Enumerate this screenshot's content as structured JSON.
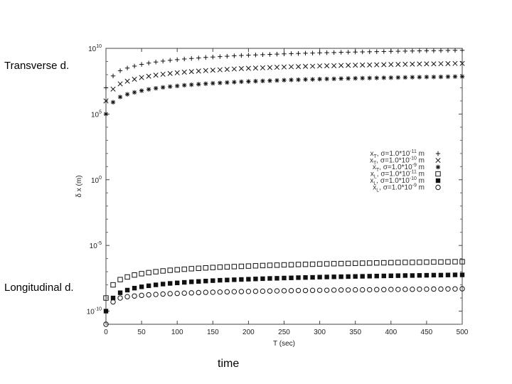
{
  "annotations": {
    "transverse": "Transverse d.",
    "longitudinal": "Longitudinal d.",
    "time": "time"
  },
  "chart_data": {
    "type": "scatter",
    "xlabel": "T (sec)",
    "ylabel": "δ x (m)",
    "xlim": [
      0,
      500
    ],
    "ylim_exp": [
      -11,
      10
    ],
    "y_scale": "log",
    "x_ticks": [
      0,
      50,
      100,
      150,
      200,
      250,
      300,
      350,
      400,
      450,
      500
    ],
    "x_tick_labels": [
      "0",
      "50",
      "100",
      "150",
      "200",
      "250",
      "300",
      "350",
      "400",
      "450",
      "500"
    ],
    "y_ticks_exp": [
      -10,
      -5,
      0,
      5,
      10
    ],
    "y_tick_labels": [
      {
        "base": "10",
        "exp": "-10"
      },
      {
        "base": "10",
        "exp": "-5"
      },
      {
        "base": "10",
        "exp": "0"
      },
      {
        "base": "10",
        "exp": "5"
      },
      {
        "base": "10",
        "exp": "10"
      }
    ],
    "grid": false,
    "legend_position": "right",
    "x": [
      0,
      10,
      20,
      30,
      40,
      50,
      60,
      70,
      80,
      90,
      100,
      110,
      120,
      130,
      140,
      150,
      160,
      170,
      180,
      190,
      200,
      210,
      220,
      230,
      240,
      250,
      260,
      270,
      280,
      290,
      300,
      310,
      320,
      330,
      340,
      350,
      360,
      370,
      380,
      390,
      400,
      410,
      420,
      430,
      440,
      450,
      460,
      470,
      480,
      490,
      500
    ],
    "series": [
      {
        "name": "x_T, σ=1.0*10^-11 m",
        "legend": {
          "pre": "x",
          "sub": "T",
          "mid": ", σ=1.0*10",
          "sup": "-11",
          "post": " m"
        },
        "marker": "plus",
        "y_exp": [
          7.0,
          7.9,
          8.3,
          8.5,
          8.65,
          8.78,
          8.88,
          8.96,
          9.03,
          9.09,
          9.14,
          9.19,
          9.23,
          9.27,
          9.31,
          9.34,
          9.37,
          9.4,
          9.43,
          9.46,
          9.48,
          9.5,
          9.52,
          9.54,
          9.56,
          9.58,
          9.6,
          9.61,
          9.63,
          9.64,
          9.66,
          9.67,
          9.68,
          9.7,
          9.71,
          9.72,
          9.73,
          9.74,
          9.75,
          9.76,
          9.77,
          9.78,
          9.79,
          9.8,
          9.81,
          9.82,
          9.82,
          9.83,
          9.84,
          9.85,
          9.85
        ]
      },
      {
        "name": "x_T, σ=1.0*10^-10 m",
        "legend": {
          "pre": "x",
          "sub": "T",
          "mid": ", σ=1.0*10",
          "sup": "-10",
          "post": " m"
        },
        "marker": "cross",
        "y_exp": [
          6.0,
          6.9,
          7.3,
          7.5,
          7.65,
          7.78,
          7.88,
          7.96,
          8.03,
          8.09,
          8.14,
          8.19,
          8.23,
          8.27,
          8.31,
          8.34,
          8.37,
          8.4,
          8.43,
          8.46,
          8.48,
          8.5,
          8.52,
          8.54,
          8.56,
          8.58,
          8.6,
          8.61,
          8.63,
          8.64,
          8.66,
          8.67,
          8.68,
          8.7,
          8.71,
          8.72,
          8.73,
          8.74,
          8.75,
          8.76,
          8.77,
          8.78,
          8.79,
          8.8,
          8.81,
          8.82,
          8.82,
          8.83,
          8.84,
          8.85,
          8.85
        ]
      },
      {
        "name": "x_T, σ=1.0*10^-9 m",
        "legend": {
          "pre": "x",
          "sub": "T",
          "mid": ", σ=1.0*10",
          "sup": "-9",
          "post": " m"
        },
        "marker": "star",
        "y_exp": [
          5.0,
          5.9,
          6.3,
          6.5,
          6.65,
          6.78,
          6.88,
          6.96,
          7.03,
          7.09,
          7.14,
          7.19,
          7.23,
          7.27,
          7.31,
          7.34,
          7.37,
          7.4,
          7.43,
          7.46,
          7.48,
          7.5,
          7.52,
          7.54,
          7.56,
          7.58,
          7.6,
          7.61,
          7.63,
          7.64,
          7.66,
          7.67,
          7.68,
          7.7,
          7.71,
          7.72,
          7.73,
          7.74,
          7.75,
          7.76,
          7.77,
          7.78,
          7.79,
          7.8,
          7.81,
          7.82,
          7.82,
          7.83,
          7.84,
          7.85,
          7.85
        ]
      },
      {
        "name": "x_L, σ=1.0*10^-11 m",
        "legend": {
          "pre": "x",
          "sub": "L",
          "mid": ", σ=1.0*10",
          "sup": "-11",
          "post": " m"
        },
        "marker": "square-open",
        "y_exp": [
          -9.0,
          -8.0,
          -7.6,
          -7.4,
          -7.25,
          -7.15,
          -7.07,
          -7.0,
          -6.94,
          -6.89,
          -6.85,
          -6.81,
          -6.77,
          -6.74,
          -6.71,
          -6.68,
          -6.65,
          -6.63,
          -6.61,
          -6.59,
          -6.57,
          -6.55,
          -6.53,
          -6.51,
          -6.5,
          -6.48,
          -6.47,
          -6.45,
          -6.44,
          -6.43,
          -6.41,
          -6.4,
          -6.39,
          -6.38,
          -6.37,
          -6.36,
          -6.35,
          -6.34,
          -6.33,
          -6.32,
          -6.31,
          -6.3,
          -6.29,
          -6.29,
          -6.28,
          -6.27,
          -6.26,
          -6.26,
          -6.25,
          -6.24,
          -6.24
        ]
      },
      {
        "name": "x_L, σ=1.0*10^-10 m",
        "legend": {
          "pre": "x",
          "sub": "L",
          "mid": ", σ=1.0*10",
          "sup": "-10",
          "post": " m"
        },
        "marker": "square-filled",
        "y_exp": [
          -10.0,
          -9.0,
          -8.6,
          -8.4,
          -8.25,
          -8.15,
          -8.07,
          -8.0,
          -7.94,
          -7.89,
          -7.85,
          -7.81,
          -7.77,
          -7.74,
          -7.71,
          -7.68,
          -7.65,
          -7.63,
          -7.61,
          -7.59,
          -7.57,
          -7.55,
          -7.53,
          -7.51,
          -7.5,
          -7.48,
          -7.47,
          -7.45,
          -7.44,
          -7.43,
          -7.41,
          -7.4,
          -7.39,
          -7.38,
          -7.37,
          -7.36,
          -7.35,
          -7.34,
          -7.33,
          -7.32,
          -7.31,
          -7.3,
          -7.29,
          -7.29,
          -7.28,
          -7.27,
          -7.26,
          -7.26,
          -7.25,
          -7.24,
          -7.24
        ]
      },
      {
        "name": "x_L, σ=1.0*10^-9 m",
        "legend": {
          "pre": "x",
          "sub": "L",
          "mid": ", σ=1.0*10",
          "sup": "-9",
          "post": " m"
        },
        "marker": "circle-open",
        "y_exp": [
          -11.0,
          -9.3,
          -9.0,
          -8.9,
          -8.85,
          -8.8,
          -8.76,
          -8.73,
          -8.7,
          -8.67,
          -8.65,
          -8.63,
          -8.61,
          -8.59,
          -8.57,
          -8.56,
          -8.55,
          -8.53,
          -8.52,
          -8.51,
          -8.5,
          -8.49,
          -8.48,
          -8.47,
          -8.46,
          -8.45,
          -8.44,
          -8.43,
          -8.43,
          -8.42,
          -8.41,
          -8.41,
          -8.4,
          -8.39,
          -8.39,
          -8.38,
          -8.38,
          -8.37,
          -8.36,
          -8.36,
          -8.35,
          -8.35,
          -8.34,
          -8.34,
          -8.33,
          -8.33,
          -8.32,
          -8.32,
          -8.31,
          -8.31,
          -8.3
        ]
      }
    ]
  }
}
